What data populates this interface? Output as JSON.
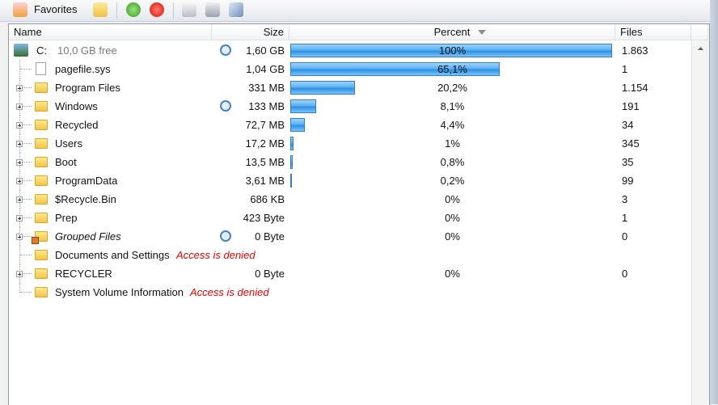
{
  "toolbar": {
    "favorites": "Favorites"
  },
  "columns": [
    "Name",
    "Size",
    "Percent",
    "Files"
  ],
  "rows": [
    {
      "name": "C:",
      "note": "10,0 GB free",
      "size": "1,60 GB",
      "percent": "100%",
      "files": "1.863"
    },
    {
      "name": "pagefile.sys",
      "size": "1,04 GB",
      "percent": "65,1%",
      "files": "1"
    },
    {
      "name": "Program Files",
      "size": "331 MB",
      "percent": "20,2%",
      "files": "1.154"
    },
    {
      "name": "Windows",
      "size": "133 MB",
      "percent": "8,1%",
      "files": "191"
    },
    {
      "name": "Recycled",
      "size": "72,7 MB",
      "percent": "4,4%",
      "files": "34"
    },
    {
      "name": "Users",
      "size": "17,2 MB",
      "percent": "1%",
      "files": "345"
    },
    {
      "name": "Boot",
      "size": "13,5 MB",
      "percent": "0,8%",
      "files": "35"
    },
    {
      "name": "ProgramData",
      "size": "3,61 MB",
      "percent": "0,2%",
      "files": "99"
    },
    {
      "name": "$Recycle.Bin",
      "size": "686 KB",
      "percent": "0%",
      "files": "3"
    },
    {
      "name": "Prep",
      "size": "423 Byte",
      "percent": "0%",
      "files": "1"
    },
    {
      "name": "Grouped Files",
      "size": "0 Byte",
      "percent": "0%",
      "files": "0"
    },
    {
      "name": "Documents and Settings",
      "note": "Access is denied"
    },
    {
      "name": "RECYCLER",
      "size": "0 Byte",
      "percent": "0%",
      "files": "0"
    },
    {
      "name": "System Volume Information",
      "note": "Access is denied"
    }
  ]
}
